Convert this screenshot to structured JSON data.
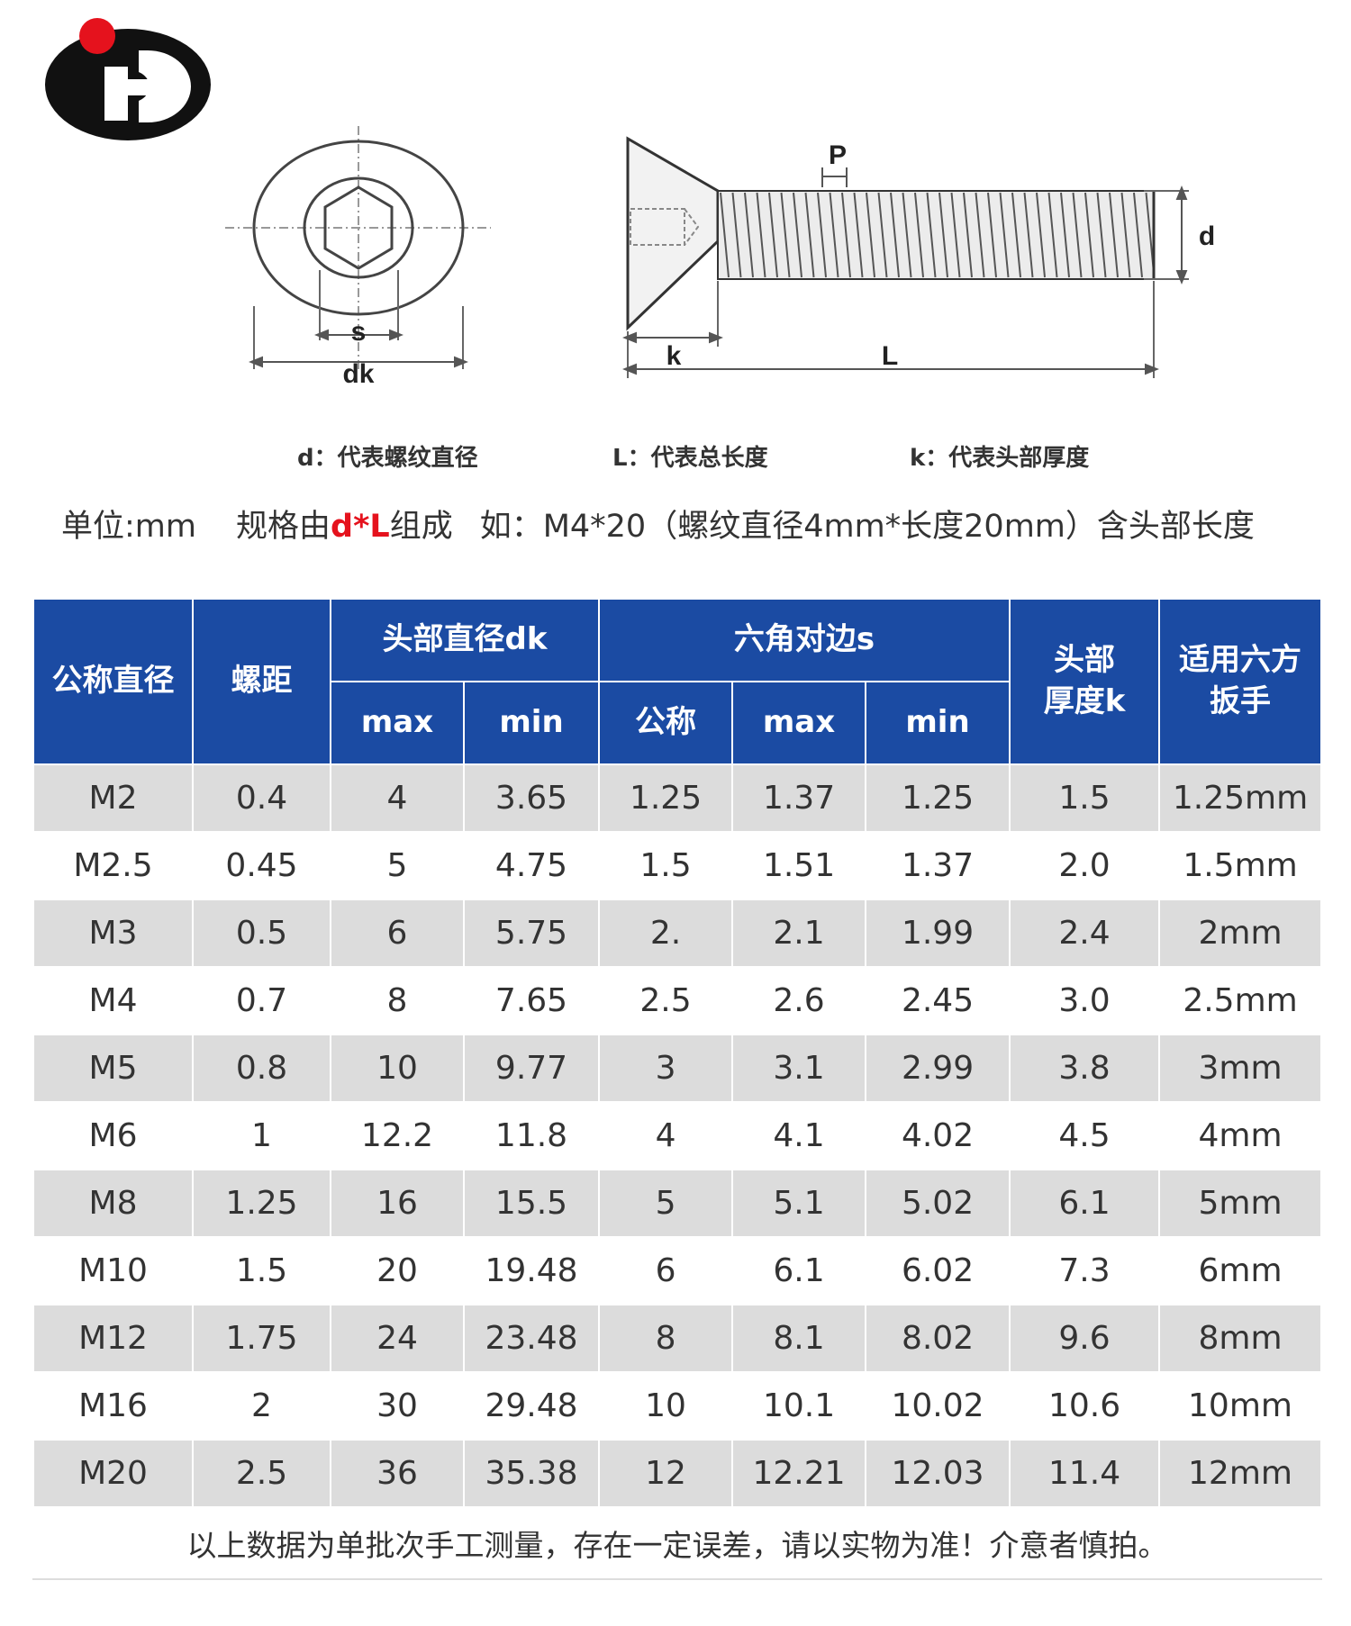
{
  "legend": {
    "d": "d：代表螺纹直径",
    "L": "L：代表总长度",
    "k": "k：代表头部厚度"
  },
  "diagram_labels": {
    "s": "s",
    "dk": "dk",
    "P": "P",
    "d": "d",
    "k": "k",
    "L": "L"
  },
  "spec_line": {
    "unit": "单位:mm",
    "spec_prefix": "规格由",
    "spec_d": "d",
    "spec_star": "*",
    "spec_L": "L",
    "spec_suffix": "组成",
    "example": "如：M4*20（螺纹直径4mm*长度20mm）含头部长度"
  },
  "colors": {
    "header_bg": "#1b4ba3",
    "row_alt_bg": "#dcdcdc",
    "highlight_red": "#e5121d",
    "logo_red": "#e5121d",
    "logo_black": "#111111"
  },
  "table": {
    "headers": {
      "nominal_diameter": "公称直径",
      "pitch": "螺距",
      "head_diameter": "头部直径dk",
      "hex_across_flats": "六角对边s",
      "head_thickness_line1": "头部",
      "head_thickness_line2": "厚度k",
      "wrench_line1": "适用六方",
      "wrench_line2": "扳手",
      "dk_max": "max",
      "dk_min": "min",
      "s_nominal": "公称",
      "s_max": "max",
      "s_min": "min"
    },
    "rows": [
      [
        "M2",
        "0.4",
        "4",
        "3.65",
        "1.25",
        "1.37",
        "1.25",
        "1.5",
        "1.25mm"
      ],
      [
        "M2.5",
        "0.45",
        "5",
        "4.75",
        "1.5",
        "1.51",
        "1.37",
        "2.0",
        "1.5mm"
      ],
      [
        "M3",
        "0.5",
        "6",
        "5.75",
        "2.",
        "2.1",
        "1.99",
        "2.4",
        "2mm"
      ],
      [
        "M4",
        "0.7",
        "8",
        "7.65",
        "2.5",
        "2.6",
        "2.45",
        "3.0",
        "2.5mm"
      ],
      [
        "M5",
        "0.8",
        "10",
        "9.77",
        "3",
        "3.1",
        "2.99",
        "3.8",
        "3mm"
      ],
      [
        "M6",
        "1",
        "12.2",
        "11.8",
        "4",
        "4.1",
        "4.02",
        "4.5",
        "4mm"
      ],
      [
        "M8",
        "1.25",
        "16",
        "15.5",
        "5",
        "5.1",
        "5.02",
        "6.1",
        "5mm"
      ],
      [
        "M10",
        "1.5",
        "20",
        "19.48",
        "6",
        "6.1",
        "6.02",
        "7.3",
        "6mm"
      ],
      [
        "M12",
        "1.75",
        "24",
        "23.48",
        "8",
        "8.1",
        "8.02",
        "9.6",
        "8mm"
      ],
      [
        "M16",
        "2",
        "30",
        "29.48",
        "10",
        "10.1",
        "10.02",
        "10.6",
        "10mm"
      ],
      [
        "M20",
        "2.5",
        "36",
        "35.38",
        "12",
        "12.21",
        "12.03",
        "11.4",
        "12mm"
      ]
    ],
    "footnote": "以上数据为单批次手工测量，存在一定误差，请以实物为准！介意者慎拍。"
  }
}
